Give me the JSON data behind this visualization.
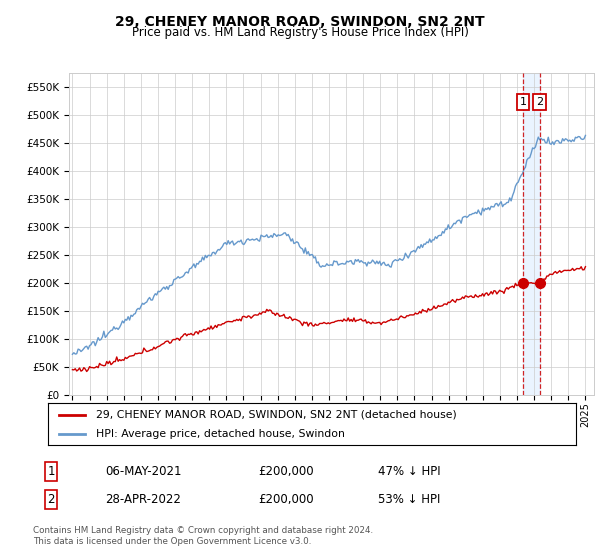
{
  "title": "29, CHENEY MANOR ROAD, SWINDON, SN2 2NT",
  "subtitle": "Price paid vs. HM Land Registry's House Price Index (HPI)",
  "ylim": [
    0,
    575000
  ],
  "yticks": [
    0,
    50000,
    100000,
    150000,
    200000,
    250000,
    300000,
    350000,
    400000,
    450000,
    500000,
    550000
  ],
  "ytick_labels": [
    "£0",
    "£50K",
    "£100K",
    "£150K",
    "£200K",
    "£250K",
    "£300K",
    "£350K",
    "£400K",
    "£450K",
    "£500K",
    "£550K"
  ],
  "xlim_start": 1994.8,
  "xlim_end": 2025.5,
  "sale1_x": 2021.35,
  "sale1_y": 200000,
  "sale2_x": 2022.32,
  "sale2_y": 200000,
  "sale1_date": "06-MAY-2021",
  "sale1_price": "£200,000",
  "sale1_hpi": "47% ↓ HPI",
  "sale2_date": "28-APR-2022",
  "sale2_price": "£200,000",
  "sale2_hpi": "53% ↓ HPI",
  "legend_line1": "29, CHENEY MANOR ROAD, SWINDON, SN2 2NT (detached house)",
  "legend_line2": "HPI: Average price, detached house, Swindon",
  "footer": "Contains HM Land Registry data © Crown copyright and database right 2024.\nThis data is licensed under the Open Government Licence v3.0.",
  "red_color": "#cc0000",
  "blue_color": "#6699cc",
  "shade_color": "#ddeeff",
  "background_color": "#ffffff",
  "grid_color": "#cccccc",
  "title_fontsize": 10,
  "subtitle_fontsize": 8.5
}
